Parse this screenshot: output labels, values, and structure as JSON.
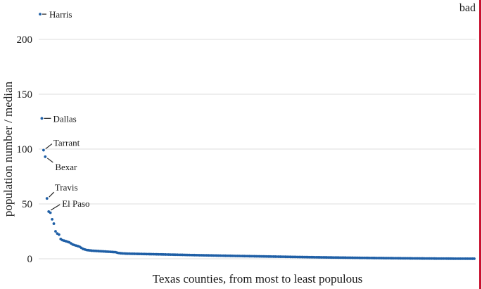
{
  "stamp": {
    "text": "bad",
    "color": "#c8102e"
  },
  "chart_data": {
    "type": "scatter",
    "title": "",
    "xlabel": "Texas counties, from most to least populous",
    "ylabel": "population number / median",
    "ylim": [
      0,
      225
    ],
    "yticks": [
      0,
      50,
      100,
      150,
      200
    ],
    "grid": "horizontal",
    "point_color": "#1f5fa6",
    "n_counties": 254,
    "series": [
      {
        "values": [
          223,
          128,
          99,
          93,
          55,
          43,
          42,
          36,
          32,
          25,
          23,
          22,
          18,
          17,
          16.5,
          16,
          15.5,
          15,
          14,
          13,
          12.5,
          12,
          11.5,
          11,
          10,
          9,
          8.5,
          8,
          7.8,
          7.6,
          7.4,
          7.3,
          7.2,
          7.1,
          7,
          6.9,
          6.8,
          6.7,
          6.6,
          6.5,
          6.4,
          6.3,
          6.2,
          6.1,
          6,
          5.5,
          5.2,
          5,
          4.9,
          4.8
        ],
        "tail": {
          "start": 4.7,
          "end": 0.05,
          "curve": 1.6
        }
      }
    ],
    "annotations": [
      {
        "rank": 1,
        "text": "Harris"
      },
      {
        "rank": 2,
        "text": "Dallas"
      },
      {
        "rank": 3,
        "text": "Tarrant"
      },
      {
        "rank": 4,
        "text": "Bexar"
      },
      {
        "rank": 5,
        "text": "Travis"
      },
      {
        "rank": 6,
        "text": "El Paso"
      }
    ]
  }
}
